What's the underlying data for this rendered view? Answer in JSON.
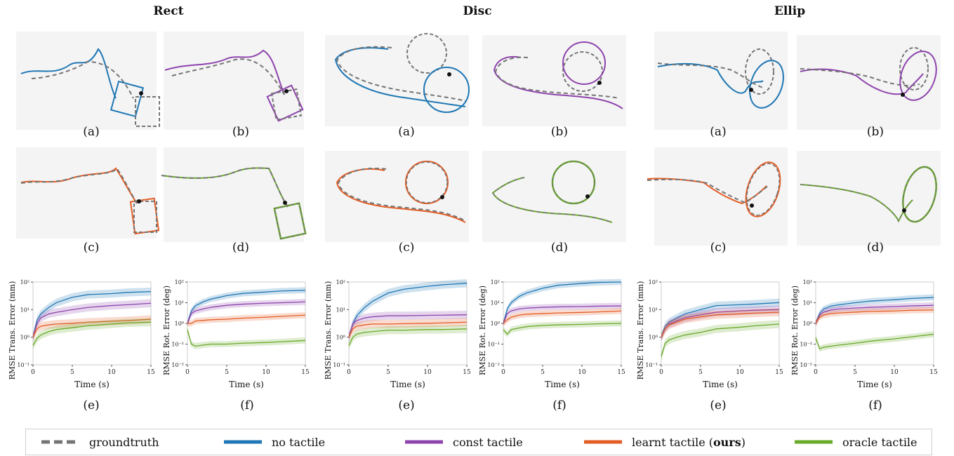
{
  "columns": [
    {
      "title": "Rect"
    },
    {
      "title": "Disc"
    },
    {
      "title": "Ellip"
    }
  ],
  "subfigure_labels": [
    "(a)",
    "(b)",
    "(c)",
    "(d)",
    "(e)",
    "(f)"
  ],
  "colors": {
    "groundtruth": "#757575",
    "no_tactile": "#1f77b4",
    "const_tactile": "#8e44ad",
    "learnt_tactile": "#e35d25",
    "oracle_tactile": "#6aaa2a"
  },
  "legend": {
    "groundtruth": "groundtruth",
    "no_tactile": "no tactile",
    "const_tactile": "const tactile",
    "learnt_prefix": "learnt tactile (",
    "learnt_bold": "ours",
    "learnt_suffix": ")",
    "oracle_tactile": "oracle tactile"
  },
  "chart_data": [
    {
      "type": "line",
      "column": "Rect",
      "panel": "(e)",
      "ylabel": "RMSE Trans. Error (mm)",
      "xlabel": "Time (s)",
      "yscale": "log",
      "ylim": [
        0.1,
        100
      ],
      "xlim": [
        0,
        15
      ],
      "yticks": [
        "10⁻¹",
        "10⁰",
        "10¹",
        "10²"
      ],
      "xticks": [
        "0",
        "5",
        "10",
        "15"
      ],
      "x": [
        0,
        0.5,
        1,
        2,
        3,
        5,
        7,
        10,
        12,
        15
      ],
      "series": [
        {
          "name": "no tactile",
          "values": [
            1,
            4,
            7,
            12,
            18,
            28,
            35,
            38,
            42,
            45
          ]
        },
        {
          "name": "const tactile",
          "values": [
            1,
            3,
            5,
            7,
            8,
            10,
            12,
            14,
            15,
            17
          ]
        },
        {
          "name": "learnt tactile (ours)",
          "values": [
            1,
            2,
            2.5,
            2.8,
            3,
            3.2,
            3.5,
            3.8,
            4,
            4.5
          ]
        },
        {
          "name": "oracle tactile",
          "values": [
            0.5,
            0.9,
            1.2,
            1.6,
            1.9,
            2.2,
            2.6,
            3,
            3.3,
            3.5
          ]
        }
      ]
    },
    {
      "type": "line",
      "column": "Rect",
      "panel": "(f)",
      "ylabel": "RMSE Rot. Error (deg)",
      "xlabel": "Time (s)",
      "yscale": "log",
      "ylim": [
        0.01,
        100
      ],
      "xlim": [
        0,
        15
      ],
      "yticks": [
        "10⁻²",
        "10⁻¹",
        "10⁰",
        "10¹",
        "10²"
      ],
      "xticks": [
        "0",
        "5",
        "10",
        "15"
      ],
      "x": [
        0,
        0.5,
        1,
        2,
        3,
        5,
        7,
        10,
        12,
        15
      ],
      "series": [
        {
          "name": "no tactile",
          "values": [
            1,
            4,
            7,
            11,
            15,
            22,
            28,
            33,
            37,
            40
          ]
        },
        {
          "name": "const tactile",
          "values": [
            1,
            3,
            4,
            5,
            6,
            7.5,
            8.5,
            9.5,
            10,
            11
          ]
        },
        {
          "name": "learnt tactile (ours)",
          "values": [
            1,
            1,
            1.3,
            1.4,
            1.5,
            1.6,
            1.8,
            2,
            2.2,
            2.5
          ]
        },
        {
          "name": "oracle tactile",
          "values": [
            0.5,
            0.1,
            0.08,
            0.09,
            0.1,
            0.1,
            0.11,
            0.12,
            0.13,
            0.15
          ]
        }
      ]
    },
    {
      "type": "line",
      "column": "Disc",
      "panel": "(e)",
      "ylabel": "RMSE Trans. Error (mm)",
      "xlabel": "Time (s)",
      "yscale": "log",
      "ylim": [
        0.1,
        100
      ],
      "xlim": [
        0,
        15
      ],
      "yticks": [
        "10⁻¹",
        "10⁰",
        "10¹",
        "10²"
      ],
      "xticks": [
        "0",
        "5",
        "10",
        "15"
      ],
      "x": [
        0,
        0.5,
        1,
        2,
        3,
        5,
        7,
        10,
        12,
        15
      ],
      "series": [
        {
          "name": "no tactile",
          "values": [
            1,
            3,
            6,
            12,
            20,
            40,
            55,
            70,
            80,
            90
          ]
        },
        {
          "name": "const tactile",
          "values": [
            1,
            3,
            4,
            5,
            5.5,
            6,
            6,
            6.2,
            6.3,
            6.5
          ]
        },
        {
          "name": "learnt tactile (ours)",
          "values": [
            1,
            2,
            2.5,
            2.8,
            3,
            3,
            3.1,
            3.2,
            3.3,
            3.5
          ]
        },
        {
          "name": "oracle tactile",
          "values": [
            0.5,
            1,
            1.3,
            1.5,
            1.6,
            1.8,
            1.8,
            1.9,
            1.9,
            2
          ]
        }
      ]
    },
    {
      "type": "line",
      "column": "Disc",
      "panel": "(f)",
      "ylabel": "RMSE Rot. Error (deg)",
      "xlabel": "Time (s)",
      "yscale": "log",
      "ylim": [
        0.01,
        100
      ],
      "xlim": [
        0,
        15
      ],
      "yticks": [
        "10⁻²",
        "10⁻¹",
        "10⁰",
        "10¹",
        "10²"
      ],
      "xticks": [
        "0",
        "5",
        "10",
        "15"
      ],
      "x": [
        0,
        0.5,
        1,
        2,
        3,
        5,
        7,
        10,
        12,
        15
      ],
      "series": [
        {
          "name": "no tactile",
          "values": [
            1,
            5,
            10,
            20,
            30,
            50,
            70,
            85,
            95,
            100
          ]
        },
        {
          "name": "const tactile",
          "values": [
            1,
            3,
            4,
            5,
            5.5,
            6,
            6.3,
            6.5,
            6.8,
            7
          ]
        },
        {
          "name": "learnt tactile (ours)",
          "values": [
            1,
            1.5,
            2,
            2.5,
            2.8,
            3,
            3.2,
            3.4,
            3.6,
            4
          ]
        },
        {
          "name": "oracle tactile",
          "values": [
            0.5,
            0.3,
            0.5,
            0.6,
            0.7,
            0.8,
            0.85,
            0.9,
            0.95,
            1
          ]
        }
      ]
    },
    {
      "type": "line",
      "column": "Ellip",
      "panel": "(e)",
      "ylabel": "RMSE Trans. Error (mm)",
      "xlabel": "Time (s)",
      "yscale": "log",
      "ylim": [
        0.1,
        100
      ],
      "xlim": [
        0,
        15
      ],
      "yticks": [
        "10⁻¹",
        "10⁰",
        "10¹",
        "10²"
      ],
      "xticks": [
        "0",
        "5",
        "10",
        "15"
      ],
      "x": [
        0,
        0.5,
        1,
        2,
        3,
        5,
        7,
        10,
        12,
        15
      ],
      "series": [
        {
          "name": "no tactile",
          "values": [
            1,
            2.5,
            3.5,
            5,
            7,
            10,
            14,
            15,
            16,
            18
          ]
        },
        {
          "name": "const tactile",
          "values": [
            1,
            2,
            3,
            4,
            5,
            6.5,
            8,
            9,
            9.5,
            10
          ]
        },
        {
          "name": "learnt tactile (ours)",
          "values": [
            1,
            2,
            2.8,
            3.5,
            4.5,
            5.5,
            6.5,
            7,
            7.5,
            8
          ]
        },
        {
          "name": "oracle tactile",
          "values": [
            0.2,
            0.6,
            0.8,
            1,
            1.2,
            1.5,
            2,
            2.3,
            2.6,
            3
          ]
        }
      ]
    },
    {
      "type": "line",
      "column": "Ellip",
      "panel": "(f)",
      "ylabel": "RMSE Rot. Error (deg)",
      "xlabel": "Time (s)",
      "yscale": "log",
      "ylim": [
        0.01,
        100
      ],
      "xlim": [
        0,
        15
      ],
      "yticks": [
        "10⁻²",
        "10⁻¹",
        "10⁰",
        "10¹",
        "10²"
      ],
      "xticks": [
        "0",
        "5",
        "10",
        "15"
      ],
      "x": [
        0,
        0.5,
        1,
        2,
        3,
        5,
        7,
        10,
        12,
        15
      ],
      "series": [
        {
          "name": "no tactile",
          "values": [
            1,
            3,
            5,
            7,
            8,
            10,
            12,
            14,
            16,
            18
          ]
        },
        {
          "name": "const tactile",
          "values": [
            1,
            2.5,
            3.5,
            4.5,
            5,
            5.5,
            6,
            6.5,
            7,
            7.5
          ]
        },
        {
          "name": "learnt tactile (ours)",
          "values": [
            1,
            2,
            2.5,
            3,
            3.2,
            3.5,
            3.8,
            4,
            4.3,
            4.5
          ]
        },
        {
          "name": "oracle tactile",
          "values": [
            0.2,
            0.06,
            0.07,
            0.08,
            0.09,
            0.11,
            0.14,
            0.18,
            0.22,
            0.3
          ]
        }
      ]
    }
  ]
}
